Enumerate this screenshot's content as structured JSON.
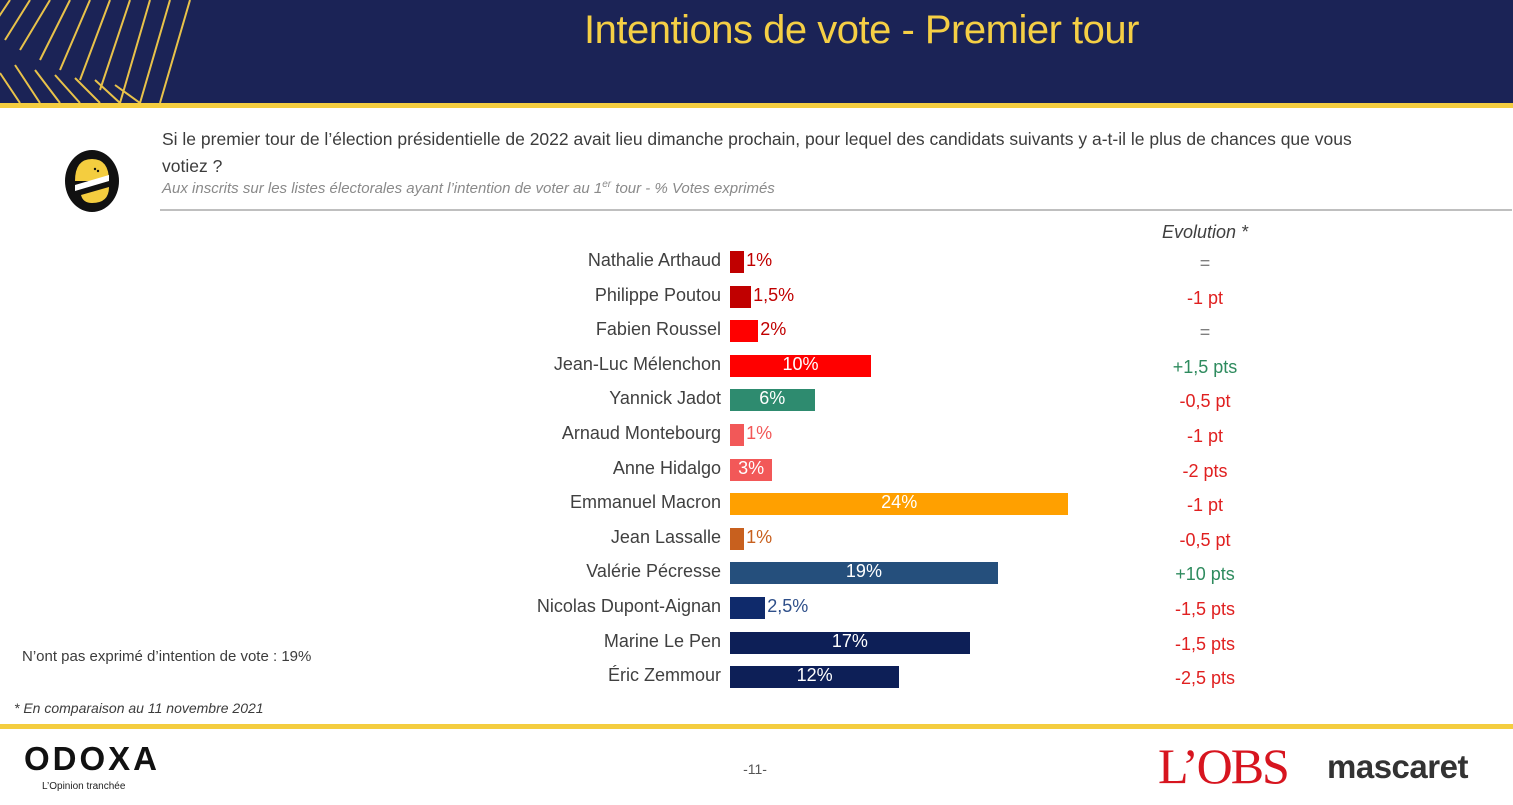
{
  "header": {
    "title": "Intentions de vote - Premier tour"
  },
  "question": {
    "text": "Si le premier tour de l’élection présidentielle de 2022 avait lieu dimanche prochain, pour lequel des candidats suivants y a-t-il le plus de chances que vous votiez ?",
    "subtitle_before": "Aux inscrits sur les listes électorales ayant l’intention de voter au 1",
    "subtitle_sup": "er",
    "subtitle_after": " tour  - % Votes exprimés"
  },
  "chart_data": {
    "type": "bar",
    "orientation": "horizontal",
    "categories": [
      "Nathalie Arthaud",
      "Philippe Poutou",
      "Fabien Roussel",
      "Jean-Luc Mélenchon",
      "Yannick Jadot",
      "Arnaud Montebourg",
      "Anne Hidalgo",
      "Emmanuel Macron",
      "Jean Lassalle",
      "Valérie Pécresse",
      "Nicolas Dupont-Aignan",
      "Marine Le Pen",
      "Éric Zemmour"
    ],
    "values": [
      1,
      1.5,
      2,
      10,
      6,
      1,
      3,
      24,
      1,
      19,
      2.5,
      17,
      12
    ],
    "value_labels": [
      "1%",
      "1,5%",
      "2%",
      "10%",
      "6%",
      "1%",
      "3%",
      "24%",
      "1%",
      "19%",
      "2,5%",
      "17%",
      "12%"
    ],
    "colors": [
      "#c00000",
      "#c00000",
      "#ff0000",
      "#ff0000",
      "#2e8b6f",
      "#f25858",
      "#f25858",
      "#ffa000",
      "#c8601e",
      "#254f7c",
      "#0f2a6b",
      "#0d1f57",
      "#0d1f57"
    ],
    "label_inside": [
      false,
      false,
      false,
      true,
      true,
      false,
      true,
      true,
      false,
      true,
      false,
      true,
      true
    ],
    "outside_label_colors": [
      "#c00000",
      "#c00000",
      "#c00000",
      "",
      "",
      "#f25858",
      "",
      "",
      "#c8601e",
      "",
      "#2e4f8a",
      "",
      ""
    ],
    "evolution_header": "Evolution *",
    "evolution": [
      "=",
      "-1 pt",
      "=",
      "+1,5 pts",
      "-0,5 pt",
      "-1 pt",
      "-2 pts",
      "-1 pt",
      "-0,5 pt",
      "+10 pts",
      "-1,5 pts",
      "-1,5 pts",
      "-2,5 pts"
    ],
    "evolution_colors": [
      "#7f7f7f",
      "#e02020",
      "#7f7f7f",
      "#2e8b5e",
      "#e02020",
      "#e02020",
      "#e02020",
      "#e02020",
      "#e02020",
      "#2e8b5e",
      "#e02020",
      "#e02020",
      "#e02020"
    ]
  },
  "non_exprime": "N’ont pas exprimé d’intention de vote : 19%",
  "footnote": "* En comparaison au 11 novembre 2021",
  "footer": {
    "odoxa": "ODOXA",
    "odoxa_tagline": "L’Opinion tranchée",
    "page": "-11-",
    "lobs": "L’OBS",
    "mascaret": "mascaret"
  },
  "colors": {
    "navy": "#1b2356",
    "gold": "#f4cd3f",
    "title_gold": "#f5cf45"
  }
}
